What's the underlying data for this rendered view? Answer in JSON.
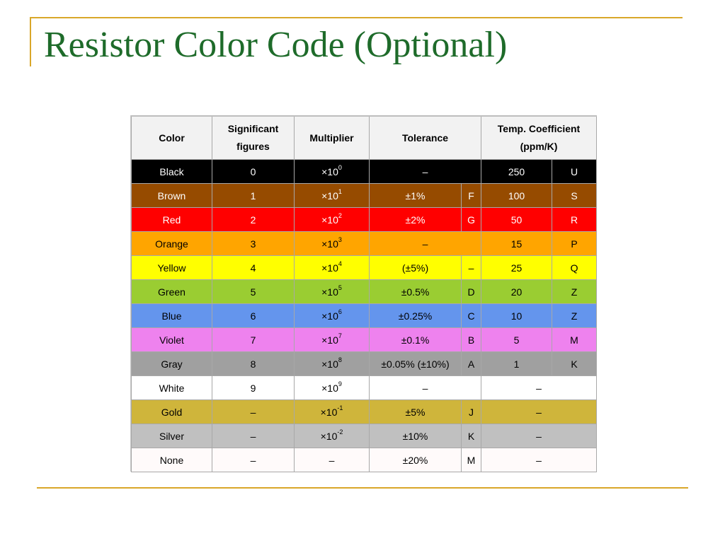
{
  "slide": {
    "title": "Resistor Color Code (Optional)"
  },
  "colors": {
    "rule": "#d9a72a",
    "title": "#1e6b2a"
  },
  "table": {
    "headers": {
      "color": "Color",
      "significant": "Significant figures",
      "multiplier": "Multiplier",
      "tolerance": "Tolerance",
      "temp": "Temp. Coefficient (ppm/K)"
    },
    "rows": [
      {
        "color": "Black",
        "bg": "#000000",
        "fg": "#ffffff",
        "sig": "0",
        "mult": "×10",
        "exp": "0",
        "tol": "–",
        "tol_code": "",
        "temp": "250",
        "temp_code": "U"
      },
      {
        "color": "Brown",
        "bg": "#964b00",
        "fg": "#ffffff",
        "sig": "1",
        "mult": "×10",
        "exp": "1",
        "tol": "±1%",
        "tol_code": "F",
        "temp": "100",
        "temp_code": "S"
      },
      {
        "color": "Red",
        "bg": "#ff0000",
        "fg": "#ffffff",
        "sig": "2",
        "mult": "×10",
        "exp": "2",
        "tol": "±2%",
        "tol_code": "G",
        "temp": "50",
        "temp_code": "R"
      },
      {
        "color": "Orange",
        "bg": "#ffa500",
        "fg": "#000000",
        "sig": "3",
        "mult": "×10",
        "exp": "3",
        "tol": "–",
        "tol_code": "",
        "temp": "15",
        "temp_code": "P"
      },
      {
        "color": "Yellow",
        "bg": "#ffff00",
        "fg": "#000000",
        "sig": "4",
        "mult": "×10",
        "exp": "4",
        "tol": "(±5%)",
        "tol_code": "–",
        "temp": "25",
        "temp_code": "Q"
      },
      {
        "color": "Green",
        "bg": "#9acd32",
        "fg": "#000000",
        "sig": "5",
        "mult": "×10",
        "exp": "5",
        "tol": "±0.5%",
        "tol_code": "D",
        "temp": "20",
        "temp_code": "Z"
      },
      {
        "color": "Blue",
        "bg": "#6495ed",
        "fg": "#000000",
        "sig": "6",
        "mult": "×10",
        "exp": "6",
        "tol": "±0.25%",
        "tol_code": "C",
        "temp": "10",
        "temp_code": "Z"
      },
      {
        "color": "Violet",
        "bg": "#ee82ee",
        "fg": "#000000",
        "sig": "7",
        "mult": "×10",
        "exp": "7",
        "tol": "±0.1%",
        "tol_code": "B",
        "temp": "5",
        "temp_code": "M"
      },
      {
        "color": "Gray",
        "bg": "#a0a0a0",
        "fg": "#000000",
        "sig": "8",
        "mult": "×10",
        "exp": "8",
        "tol": "±0.05% (±10%)",
        "tol_code": "A",
        "temp": "1",
        "temp_code": "K"
      },
      {
        "color": "White",
        "bg": "#ffffff",
        "fg": "#000000",
        "sig": "9",
        "mult": "×10",
        "exp": "9",
        "tol": "–",
        "tol_code": "",
        "temp": "–",
        "temp_code": ""
      },
      {
        "color": "Gold",
        "bg": "#cfb53b",
        "fg": "#000000",
        "sig": "–",
        "mult": "×10",
        "exp": "-1",
        "tol": "±5%",
        "tol_code": "J",
        "temp": "–",
        "temp_code": ""
      },
      {
        "color": "Silver",
        "bg": "#c0c0c0",
        "fg": "#000000",
        "sig": "–",
        "mult": "×10",
        "exp": "-2",
        "tol": "±10%",
        "tol_code": "K",
        "temp": "–",
        "temp_code": ""
      },
      {
        "color": "None",
        "bg": "#fffafa",
        "fg": "#000000",
        "sig": "–",
        "mult": "–",
        "exp": "",
        "tol": "±20%",
        "tol_code": "M",
        "temp": "–",
        "temp_code": ""
      }
    ]
  }
}
